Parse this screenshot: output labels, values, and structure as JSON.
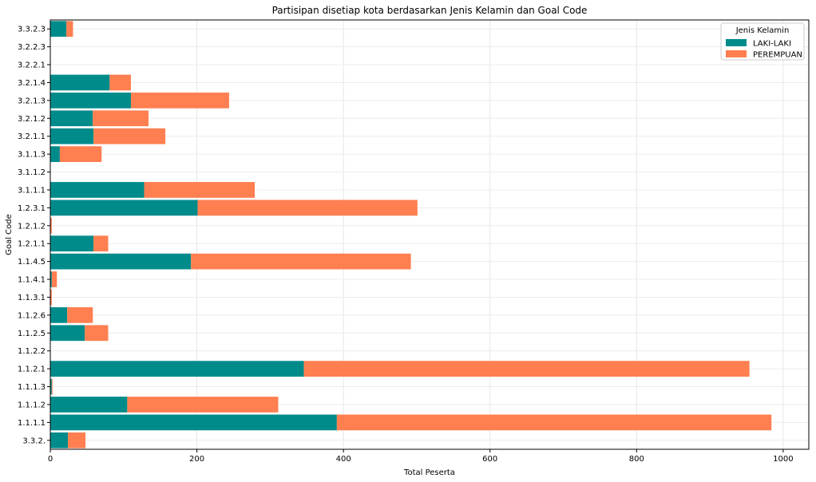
{
  "chart_data": {
    "type": "bar",
    "orientation": "horizontal",
    "stacked": true,
    "title": "Partisipan disetiap kota berdasarkan Jenis Kelamin dan Goal Code",
    "xlabel": "Total Peserta",
    "ylabel": "Goal Code",
    "xlim": [
      0,
      1035
    ],
    "xticks": [
      0,
      200,
      400,
      600,
      800,
      1000
    ],
    "grid": true,
    "legend": {
      "title": "Jenis Kelamin",
      "position": "top-right"
    },
    "categories": [
      "3.3.2.",
      "1.1.1.1",
      "1.1.1.2",
      "1.1.1.3",
      "1.1.2.1",
      "1.1.2.2",
      "1.1.2.5",
      "1.1.2.6",
      "1.1.3.1",
      "1.1.4.1",
      "1.1.4.5",
      "1.2.1.1",
      "1.2.1.2",
      "1.2.3.1",
      "3.1.1.1",
      "3.1.1.2",
      "3.1.1.3",
      "3.2.1.1",
      "3.2.1.2",
      "3.2.1.3",
      "3.2.1.4",
      "3.2.2.1",
      "3.2.2.3",
      "3.3.2.3"
    ],
    "series": [
      {
        "name": "LAKI-LAKI",
        "color": "#008b8b",
        "values": [
          24,
          391,
          105,
          2,
          346,
          0,
          47,
          23,
          0,
          2,
          192,
          59,
          0,
          201,
          128,
          0,
          13,
          59,
          58,
          110,
          81,
          0,
          0,
          22
        ]
      },
      {
        "name": "PEREMPUAN",
        "color": "#ff7f50",
        "values": [
          24,
          593,
          206,
          1,
          608,
          0,
          32,
          35,
          2,
          7,
          300,
          20,
          2,
          300,
          151,
          0,
          57,
          98,
          76,
          134,
          29,
          0,
          0,
          9
        ]
      }
    ]
  }
}
